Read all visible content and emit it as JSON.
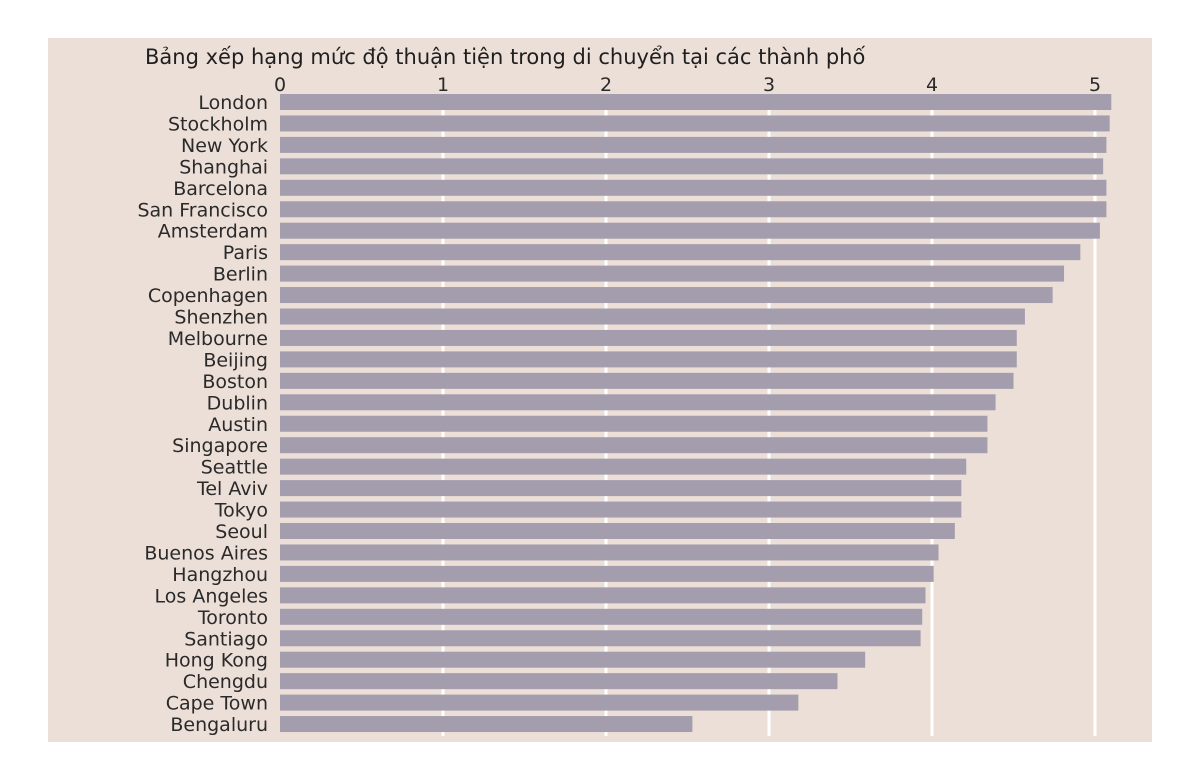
{
  "colors": {
    "background": "#ecdfd7",
    "bar": "#a39dad",
    "grid": "#ffffff",
    "text": "#2a2a2a"
  },
  "chart_data": {
    "type": "bar",
    "orientation": "horizontal",
    "title": "Bảng xếp hạng mức độ thuận tiện trong di chuyển tại các thành phố",
    "xlabel": "",
    "ylabel": "",
    "xlim": [
      0,
      5.1
    ],
    "ticks": [
      "0",
      "1",
      "2",
      "3",
      "4",
      "5"
    ],
    "grid": "vertical",
    "categories": [
      "London",
      "Stockholm",
      "New York",
      "Shanghai",
      "Barcelona",
      "San Francisco",
      "Amsterdam",
      "Paris",
      "Berlin",
      "Copenhagen",
      "Shenzhen",
      "Melbourne",
      "Beijing",
      "Boston",
      "Dublin",
      "Austin",
      "Singapore",
      "Seattle",
      "Tel Aviv",
      "Tokyo",
      "Seoul",
      "Buenos Aires",
      "Hangzhou",
      "Los Angeles",
      "Toronto",
      "Santiago",
      "Hong Kong",
      "Chengdu",
      "Cape Town",
      "Bengaluru"
    ],
    "values": [
      5.1,
      5.09,
      5.07,
      5.05,
      5.07,
      5.07,
      5.03,
      4.91,
      4.81,
      4.74,
      4.57,
      4.52,
      4.52,
      4.5,
      4.39,
      4.34,
      4.34,
      4.21,
      4.18,
      4.18,
      4.14,
      4.04,
      4.01,
      3.96,
      3.94,
      3.93,
      3.59,
      3.42,
      3.18,
      2.53
    ]
  }
}
